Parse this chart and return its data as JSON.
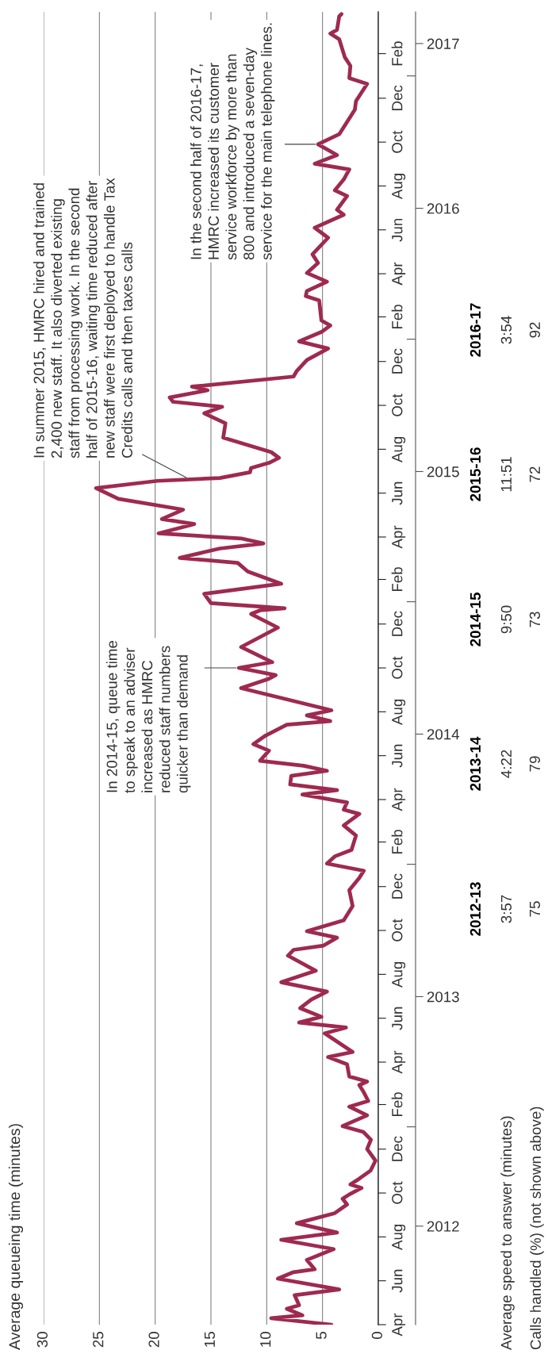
{
  "chart_data": {
    "type": "line",
    "orientation": "horizontal",
    "title": "Average queueing time (minutes)",
    "x": [
      "2012-04-01",
      "2012-04-10",
      "2012-04-14",
      "2012-04-23",
      "2012-04-28",
      "2012-05-12",
      "2012-05-20",
      "2012-06-04",
      "2012-06-13",
      "2012-06-17",
      "2012-06-30",
      "2012-07-15",
      "2012-07-28",
      "2012-08-07",
      "2012-08-20",
      "2012-09-03",
      "2012-09-15",
      "2012-09-23",
      "2012-09-29",
      "2012-10-08",
      "2012-10-13",
      "2012-10-21",
      "2012-11-01",
      "2012-11-15",
      "2012-12-01",
      "2012-12-14",
      "2012-12-25",
      "2013-01-02",
      "2013-01-17",
      "2013-01-29",
      "2013-02-06",
      "2013-02-18",
      "2013-02-28",
      "2013-03-05",
      "2013-03-12",
      "2013-03-29",
      "2013-04-08",
      "2013-04-15",
      "2013-05-11",
      "2013-05-19",
      "2013-05-26",
      "2013-06-03",
      "2013-06-15",
      "2013-06-27",
      "2013-07-08",
      "2013-07-21",
      "2013-08-06",
      "2013-08-27",
      "2013-09-04",
      "2013-09-10",
      "2013-09-21",
      "2013-09-30",
      "2013-10-15",
      "2013-11-04",
      "2013-11-26",
      "2013-12-13",
      "2013-12-23",
      "2014-01-02",
      "2014-01-12",
      "2014-01-21",
      "2014-02-10",
      "2014-02-24",
      "2014-03-12",
      "2014-03-18",
      "2014-03-28",
      "2014-04-08",
      "2014-04-14",
      "2014-04-22",
      "2014-05-04",
      "2014-05-11",
      "2014-05-18",
      "2014-05-25",
      "2014-06-08",
      "2014-06-17",
      "2014-06-29",
      "2014-07-14",
      "2014-07-19",
      "2014-07-27",
      "2014-08-03",
      "2014-09-03",
      "2014-09-16",
      "2014-09-21",
      "2014-10-01",
      "2014-10-09",
      "2014-10-30",
      "2014-11-26",
      "2014-12-15",
      "2014-12-20",
      "2014-12-23",
      "2014-12-30",
      "2015-01-12",
      "2015-01-26",
      "2015-02-12",
      "2015-02-24",
      "2015-03-03",
      "2015-03-16",
      "2015-03-23",
      "2015-03-30",
      "2015-04-06",
      "2015-04-19",
      "2015-04-26",
      "2015-05-09",
      "2015-05-24",
      "2015-06-08",
      "2015-06-18",
      "2015-06-22",
      "2015-06-30",
      "2015-07-06",
      "2015-07-13",
      "2015-07-20",
      "2015-07-28",
      "2015-08-17",
      "2015-09-06",
      "2015-09-20",
      "2015-09-29",
      "2015-10-06",
      "2015-10-12",
      "2015-10-22",
      "2015-10-27",
      "2015-11-10",
      "2015-11-18",
      "2015-12-03",
      "2015-12-19",
      "2015-12-29",
      "2016-01-11",
      "2016-01-20",
      "2016-01-27",
      "2016-02-24",
      "2016-03-01",
      "2016-03-08",
      "2016-03-21",
      "2016-04-02",
      "2016-04-16",
      "2016-04-28",
      "2016-05-21",
      "2016-06-04",
      "2016-06-22",
      "2016-06-29",
      "2016-07-18",
      "2016-07-26",
      "2016-08-10",
      "2016-08-24",
      "2016-09-01",
      "2016-09-13",
      "2016-09-28",
      "2016-10-12",
      "2016-11-15",
      "2016-11-27",
      "2016-12-21",
      "2016-12-29",
      "2017-01-15",
      "2017-01-27",
      "2017-02-21",
      "2017-03-01",
      "2017-03-06",
      "2017-03-25",
      "2017-03-28"
    ],
    "series": [
      {
        "color": "#9e2a4f",
        "values": [
          4.2,
          9.6,
          6.8,
          8.2,
          7.1,
          7.5,
          3.5,
          9.0,
          7.6,
          5.7,
          6.4,
          4.0,
          8.7,
          3.7,
          7.3,
          3.9,
          2.8,
          3.2,
          2.6,
          1.5,
          2.5,
          1.7,
          0.7,
          0.25,
          1.0,
          0.66,
          1.35,
          3.2,
          1.0,
          2.6,
          0.9,
          1.3,
          1.7,
          1.0,
          2.6,
          2.8,
          4.5,
          2.3,
          4.8,
          2.9,
          7.1,
          5.1,
          7.0,
          6.0,
          4.6,
          8.7,
          5.6,
          8.1,
          7.6,
          4.9,
          3.7,
          6.4,
          3.1,
          2.3,
          2.6,
          1.7,
          1.3,
          4.6,
          3.9,
          2.4,
          2.0,
          3.1,
          1.7,
          3.1,
          2.8,
          6.8,
          3.7,
          7.9,
          7.8,
          4.6,
          6.7,
          10.6,
          9.8,
          11.2,
          10.1,
          8.2,
          4.3,
          6.4,
          4.2,
          12.3,
          9.8,
          9.2,
          12.5,
          9.5,
          12.3,
          9.0,
          11.4,
          10.6,
          8.4,
          15.0,
          15.6,
          8.7,
          11.7,
          12.6,
          17.8,
          14.2,
          10.3,
          12.3,
          19.7,
          16.5,
          19.4,
          17.5,
          23.3,
          25.3,
          19.8,
          14.2,
          11.5,
          11.4,
          9.8,
          8.9,
          9.6,
          13.9,
          13.7,
          15.6,
          14.0,
          18.4,
          18.7,
          15.3,
          16.7,
          7.6,
          7.3,
          6.4,
          4.5,
          7.1,
          5.1,
          4.3,
          5.1,
          5.3,
          6.5,
          6.4,
          4.6,
          6.4,
          5.4,
          5.9,
          4.5,
          5.7,
          3.1,
          3.7,
          2.8,
          3.9,
          3.1,
          2.6,
          5.7,
          3.7,
          5.4,
          3.5,
          2.1,
          2.0,
          1.0,
          2.6,
          2.5,
          3.0,
          3.5,
          4.3,
          3.7,
          3.5,
          3.3
        ]
      }
    ],
    "ylim": [
      "2012-04-01",
      "2017-03-31"
    ],
    "yticks": [
      {
        "value": "2012-04-01",
        "label": "Apr"
      },
      {
        "value": "2012-06-01",
        "label": "Jun"
      },
      {
        "value": "2012-08-01",
        "label": "Aug"
      },
      {
        "value": "2012-10-01",
        "label": "Oct"
      },
      {
        "value": "2012-12-01",
        "label": "Dec"
      },
      {
        "value": "2013-02-01",
        "label": "Feb"
      },
      {
        "value": "2013-04-01",
        "label": "Apr"
      },
      {
        "value": "2013-06-01",
        "label": "Jun"
      },
      {
        "value": "2013-08-01",
        "label": "Aug"
      },
      {
        "value": "2013-10-01",
        "label": "Oct"
      },
      {
        "value": "2013-12-01",
        "label": "Dec"
      },
      {
        "value": "2014-02-01",
        "label": "Feb"
      },
      {
        "value": "2014-04-01",
        "label": "Apr"
      },
      {
        "value": "2014-06-01",
        "label": "Jun"
      },
      {
        "value": "2014-08-01",
        "label": "Aug"
      },
      {
        "value": "2014-10-01",
        "label": "Oct"
      },
      {
        "value": "2014-12-01",
        "label": "Dec"
      },
      {
        "value": "2015-02-01",
        "label": "Feb"
      },
      {
        "value": "2015-04-01",
        "label": "Apr"
      },
      {
        "value": "2015-06-01",
        "label": "Jun"
      },
      {
        "value": "2015-08-01",
        "label": "Aug"
      },
      {
        "value": "2015-10-01",
        "label": "Oct"
      },
      {
        "value": "2015-12-01",
        "label": "Dec"
      },
      {
        "value": "2016-02-01",
        "label": "Feb"
      },
      {
        "value": "2016-04-01",
        "label": "Apr"
      },
      {
        "value": "2016-06-01",
        "label": "Jun"
      },
      {
        "value": "2016-08-01",
        "label": "Aug"
      },
      {
        "value": "2016-10-01",
        "label": "Oct"
      },
      {
        "value": "2016-12-01",
        "label": "Dec"
      },
      {
        "value": "2017-02-01",
        "label": "Feb"
      }
    ],
    "y2lim": [
      "2012-04-01",
      "2017-03-31"
    ],
    "y2ticks": [
      {
        "value": "2012-08-16",
        "label": "2012"
      },
      {
        "value": "2013-07-01",
        "label": "2013"
      },
      {
        "value": "2014-07-01",
        "label": "2014"
      },
      {
        "value": "2015-07-01",
        "label": "2015"
      },
      {
        "value": "2016-07-01",
        "label": "2016"
      },
      {
        "value": "2017-02-15",
        "label": "2017"
      }
    ],
    "xlim": [
      30,
      0
    ],
    "xticks": [
      0,
      5,
      10,
      15,
      20,
      25,
      30
    ],
    "grid": "x",
    "annotations": [
      {
        "text": "In 2014-15, queue time\nto speak to an adviser\nincreased as HMRC\nreduced staff numbers\nquicker than demand",
        "x": 12.5,
        "y": "2014-10-01"
      },
      {
        "text": "In summer 2015, HMRC hired and trained\n2,400 new staff. It also diverted existing\nstaff from processing work. In the second\nhalf of 2015-16, waiting time reduced after\nnew staff were first deployed to handle Tax\nCredits calls and then taxes calls",
        "x": 17,
        "y": "2015-06-21"
      },
      {
        "text": "In the second half of 2016-17,\nHMRC increased its customer\nservice workforce by more than\n800 and introduced a seven-day\nservice for the main telephone lines.",
        "x": 5.4,
        "y": "2016-09-28"
      },
      "2012-13",
      "2013-14",
      "2014-15",
      "2015-16",
      "2016-17",
      "3:57",
      "4:22",
      "9:50",
      "11:51",
      "3:54",
      "75",
      "79",
      "73",
      "72",
      "92",
      "Average speed to answer (minutes)",
      "Calls handled (%) (not shown above)"
    ]
  }
}
